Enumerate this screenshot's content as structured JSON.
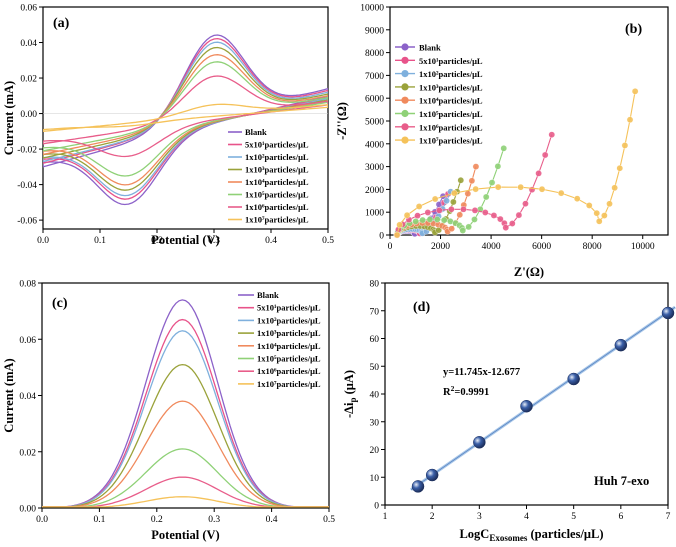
{
  "chart_data": [
    {
      "panel": "a",
      "type": "line",
      "panel_label": "(a)",
      "xlabel": "Potential (V)",
      "ylabel": "Current (mA)",
      "xlim": [
        0.0,
        0.5
      ],
      "ylim": [
        -0.065,
        0.06
      ],
      "xticks": [
        "0.0",
        "0.1",
        "0.2",
        "0.3",
        "0.4",
        "0.5"
      ],
      "yticks": [
        "-0.06",
        "-0.04",
        "-0.02",
        "0.00",
        "0.02",
        "0.04",
        "0.06"
      ],
      "legend_position": "lower-right",
      "series": [
        {
          "name": "Blank",
          "color": "#8c62c9",
          "ox_peak": 0.044,
          "red_peak": -0.051,
          "start_high": -0.03,
          "end_high": 0.014
        },
        {
          "name": "5x10¹particles/μL",
          "color": "#e8538a",
          "ox_peak": 0.042,
          "red_peak": -0.048,
          "start_high": -0.028,
          "end_high": 0.013
        },
        {
          "name": "1x10²particles/μL",
          "color": "#7fb0dd",
          "ox_peak": 0.04,
          "red_peak": -0.046,
          "start_high": -0.027,
          "end_high": 0.012
        },
        {
          "name": "1x10³particles/μL",
          "color": "#9aa23a",
          "ox_peak": 0.037,
          "red_peak": -0.043,
          "start_high": -0.025,
          "end_high": 0.011
        },
        {
          "name": "1x10⁴particles/μL",
          "color": "#f08a5d",
          "ox_peak": 0.033,
          "red_peak": -0.04,
          "start_high": -0.023,
          "end_high": 0.01
        },
        {
          "name": "1x10⁵particles/μL",
          "color": "#8fd177",
          "ox_peak": 0.029,
          "red_peak": -0.035,
          "start_high": -0.021,
          "end_high": 0.009
        },
        {
          "name": "1x10⁶particles/μL",
          "color": "#e85d8a",
          "ox_peak": 0.021,
          "red_peak": -0.024,
          "start_high": -0.017,
          "end_high": 0.007
        },
        {
          "name": "1x10⁷particles/μL",
          "color": "#f5c25a",
          "ox_peak": 0.005,
          "red_peak": -0.007,
          "start_high": -0.01,
          "end_high": 0.005
        }
      ]
    },
    {
      "panel": "b",
      "type": "scatter",
      "panel_label": "(b)",
      "xlabel": "Z'(Ω)",
      "ylabel": "-Z''(Ω)",
      "xlim": [
        0,
        11000
      ],
      "ylim": [
        0,
        10000
      ],
      "xticks": [
        "0",
        "2000",
        "4000",
        "6000",
        "8000",
        "10000"
      ],
      "yticks": [
        "0",
        "1000",
        "2000",
        "3000",
        "4000",
        "5000",
        "6000",
        "7000",
        "8000",
        "9000",
        "10000"
      ],
      "legend_position": "top-left",
      "series": [
        {
          "name": "Blank",
          "color": "#8c62c9",
          "semicircle_diameter": 700,
          "tail_end": [
            2100,
            1700
          ]
        },
        {
          "name": "5x10¹particles/μL",
          "color": "#e8538a",
          "semicircle_diameter": 900,
          "tail_end": [
            2300,
            1800
          ]
        },
        {
          "name": "1x10²particles/μL",
          "color": "#7fb0dd",
          "semicircle_diameter": 1000,
          "tail_end": [
            2400,
            1900
          ]
        },
        {
          "name": "1x10³particles/μL",
          "color": "#9aa23a",
          "semicircle_diameter": 1500,
          "tail_end": [
            2800,
            2400
          ]
        },
        {
          "name": "1x10⁴particles/μL",
          "color": "#f08a5d",
          "semicircle_diameter": 2000,
          "tail_end": [
            3400,
            3000
          ]
        },
        {
          "name": "1x10⁵particles/μL",
          "color": "#8fd177",
          "semicircle_diameter": 2600,
          "tail_end": [
            4500,
            3800
          ]
        },
        {
          "name": "1x10⁶particles/μL",
          "color": "#e85d8a",
          "semicircle_diameter": 4300,
          "tail_end": [
            6400,
            4400
          ]
        },
        {
          "name": "1x10⁷particles/μL",
          "color": "#f5c25a",
          "semicircle_diameter": 8000,
          "tail_end": [
            9700,
            6300
          ]
        }
      ]
    },
    {
      "panel": "c",
      "type": "line",
      "panel_label": "(c)",
      "xlabel": "Potential (V)",
      "ylabel": "Current (mA)",
      "xlim": [
        0.0,
        0.5
      ],
      "ylim": [
        0.0,
        0.08
      ],
      "xticks": [
        "0.0",
        "0.1",
        "0.2",
        "0.3",
        "0.4",
        "0.5"
      ],
      "yticks": [
        "0.00",
        "0.02",
        "0.04",
        "0.06",
        "0.08"
      ],
      "legend_position": "top-right",
      "series": [
        {
          "name": "Blank",
          "color": "#8c62c9",
          "peak": 0.074
        },
        {
          "name": "5x10¹particles/μL",
          "color": "#e8538a",
          "peak": 0.067
        },
        {
          "name": "1x10²particles/μL",
          "color": "#7fb0dd",
          "peak": 0.063
        },
        {
          "name": "1x10³particles/μL",
          "color": "#9aa23a",
          "peak": 0.051
        },
        {
          "name": "1x10⁴particles/μL",
          "color": "#f08a5d",
          "peak": 0.038
        },
        {
          "name": "1x10⁵particles/μL",
          "color": "#8fd177",
          "peak": 0.021
        },
        {
          "name": "1x10⁶particles/μL",
          "color": "#e85d8a",
          "peak": 0.011
        },
        {
          "name": "1x10⁷particles/μL",
          "color": "#f5c25a",
          "peak": 0.004
        }
      ]
    },
    {
      "panel": "d",
      "type": "scatter",
      "panel_label": "(d)",
      "xlabel": "LogC",
      "xlabel_sub": "Exosomes",
      "xlabel_units": " (particles/μL)",
      "ylabel": "-Δi",
      "ylabel_sub": "p",
      "ylabel_units": " (μA)",
      "xlim": [
        1,
        7
      ],
      "ylim": [
        0,
        80
      ],
      "xticks": [
        "1",
        "2",
        "3",
        "4",
        "5",
        "6",
        "7"
      ],
      "yticks": [
        "0",
        "10",
        "20",
        "30",
        "40",
        "50",
        "60",
        "70",
        "80"
      ],
      "x": [
        1.7,
        2.0,
        3.0,
        4.0,
        5.0,
        6.0,
        7.0
      ],
      "y": [
        6.7,
        10.8,
        22.6,
        35.6,
        45.4,
        57.6,
        69.2
      ],
      "fit": {
        "slope": 11.745,
        "intercept": -12.677
      },
      "equation": "y=11.745x-12.677",
      "r2_label": "R",
      "r2_sup": "2",
      "r2_value": "=0.9991",
      "sample_label": "Huh 7-exo",
      "marker_color": "#3a5fa8",
      "fit_color": "#a9c7e8"
    }
  ]
}
